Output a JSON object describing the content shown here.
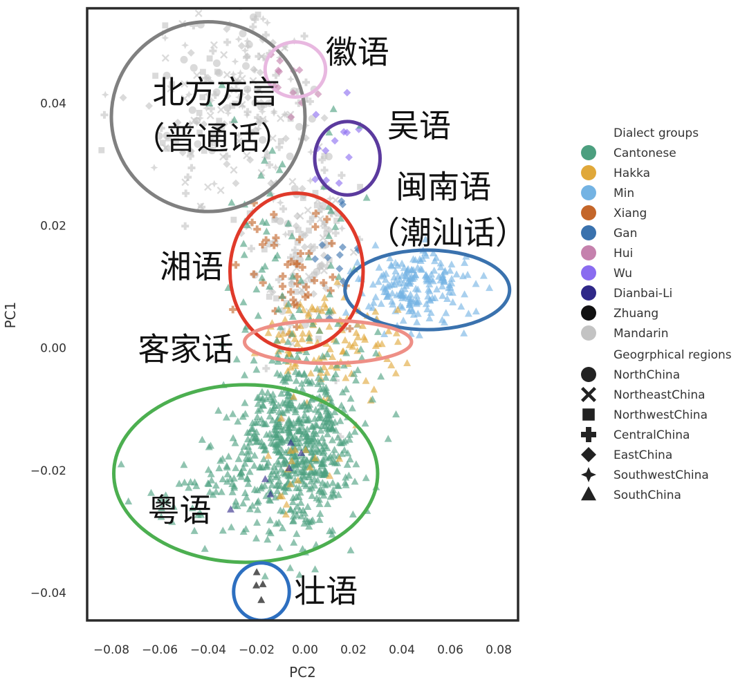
{
  "chart_data": {
    "type": "scatter",
    "xlabel": "PC2",
    "ylabel": "PC1",
    "xlim": [
      -0.09,
      0.088
    ],
    "ylim": [
      -0.0445,
      0.0555
    ],
    "xticks": [
      {
        "value": -0.08,
        "label": "−0.08"
      },
      {
        "value": -0.06,
        "label": "−0.06"
      },
      {
        "value": -0.04,
        "label": "−0.04"
      },
      {
        "value": -0.02,
        "label": "−0.02"
      },
      {
        "value": 0.0,
        "label": "0.00"
      },
      {
        "value": 0.02,
        "label": "0.02"
      },
      {
        "value": 0.04,
        "label": "0.04"
      },
      {
        "value": 0.06,
        "label": "0.06"
      },
      {
        "value": 0.08,
        "label": "0.08"
      }
    ],
    "yticks": [
      {
        "value": 0.04,
        "label": "0.04"
      },
      {
        "value": 0.02,
        "label": "0.02"
      },
      {
        "value": 0.0,
        "label": "0.00"
      },
      {
        "value": -0.02,
        "label": "−0.02"
      },
      {
        "value": -0.04,
        "label": "−0.04"
      }
    ],
    "grid": false,
    "legend_position": "right, outside",
    "dialect_groups_title": "Dialect groups",
    "dialect_groups": [
      {
        "name": "Cantonese",
        "color": "#4c9f7f"
      },
      {
        "name": "Hakka",
        "color": "#e0a83a"
      },
      {
        "name": "Min",
        "color": "#74b3e3"
      },
      {
        "name": "Xiang",
        "color": "#c4662a"
      },
      {
        "name": "Gan",
        "color": "#3a72ae"
      },
      {
        "name": "Hui",
        "color": "#c581ad"
      },
      {
        "name": "Wu",
        "color": "#8a6cf0"
      },
      {
        "name": "Dianbai-Li",
        "color": "#2f2888"
      },
      {
        "name": "Zhuang",
        "color": "#111111"
      },
      {
        "name": "Mandarin",
        "color": "#c3c3c3"
      }
    ],
    "regions_title": "Geogrphical regions",
    "regions": [
      {
        "name": "NorthChina",
        "marker": "circle"
      },
      {
        "name": "NortheastChina",
        "marker": "x"
      },
      {
        "name": "NorthwestChina",
        "marker": "square"
      },
      {
        "name": "CentralChina",
        "marker": "plus"
      },
      {
        "name": "EastChina",
        "marker": "diamond"
      },
      {
        "name": "SouthwestChina",
        "marker": "star4"
      },
      {
        "name": "SouthChina",
        "marker": "triangle"
      }
    ],
    "clusters": [
      {
        "group": "Mandarin",
        "marker": "mixed",
        "cx": -0.03,
        "cy": 0.04,
        "sx": 0.018,
        "sy": 0.008,
        "n": 210
      },
      {
        "group": "Mandarin",
        "marker": "mixed",
        "cx": 0.0,
        "cy": 0.018,
        "sx": 0.012,
        "sy": 0.009,
        "n": 140
      },
      {
        "group": "Hui",
        "marker": "diamond",
        "cx": -0.008,
        "cy": 0.044,
        "sx": 0.006,
        "sy": 0.003,
        "n": 12
      },
      {
        "group": "Wu",
        "marker": "diamond",
        "cx": 0.014,
        "cy": 0.033,
        "sx": 0.007,
        "sy": 0.004,
        "n": 12
      },
      {
        "group": "Xiang",
        "marker": "plus",
        "cx": -0.005,
        "cy": 0.012,
        "sx": 0.01,
        "sy": 0.006,
        "n": 45
      },
      {
        "group": "Gan",
        "marker": "diamond",
        "cx": 0.01,
        "cy": 0.014,
        "sx": 0.006,
        "sy": 0.004,
        "n": 12
      },
      {
        "group": "Min",
        "marker": "triangle",
        "cx": 0.045,
        "cy": 0.01,
        "sx": 0.012,
        "sy": 0.003,
        "n": 190
      },
      {
        "group": "Hakka",
        "marker": "triangle",
        "cx": 0.012,
        "cy": 0.001,
        "sx": 0.015,
        "sy": 0.004,
        "n": 110
      },
      {
        "group": "Cantonese",
        "marker": "triangle",
        "cx": -0.002,
        "cy": -0.016,
        "sx": 0.012,
        "sy": 0.007,
        "n": 560
      },
      {
        "group": "Cantonese",
        "marker": "triangle",
        "cx": -0.03,
        "cy": -0.022,
        "sx": 0.018,
        "sy": 0.004,
        "n": 90
      },
      {
        "group": "Cantonese",
        "marker": "triangle",
        "cx": -0.01,
        "cy": 0.01,
        "sx": 0.018,
        "sy": 0.016,
        "n": 90
      },
      {
        "group": "Hakka",
        "marker": "triangle",
        "cx": 0.0,
        "cy": -0.018,
        "sx": 0.01,
        "sy": 0.006,
        "n": 20
      },
      {
        "group": "Dianbai-Li",
        "marker": "triangle",
        "cx": -0.01,
        "cy": -0.024,
        "sx": 0.008,
        "sy": 0.005,
        "n": 6
      },
      {
        "group": "Zhuang",
        "marker": "triangle",
        "cx": -0.019,
        "cy": -0.0385,
        "sx": 0.002,
        "sy": 0.001,
        "n": 4
      }
    ],
    "annotations": [
      {
        "label": "北方方言",
        "ellipse_color": "#808080",
        "cx": -0.04,
        "cy": 0.0378,
        "rx": 0.04,
        "ry": 0.0155,
        "label_x": -0.063,
        "label_y": 0.04
      },
      {
        "label": "（普通话）",
        "ellipse_color": null,
        "label_x": -0.071,
        "label_y": 0.0325
      },
      {
        "label": "徽语",
        "ellipse_color": "#e8b8e0",
        "cx": -0.004,
        "cy": 0.0455,
        "rx": 0.0125,
        "ry": 0.0045,
        "label_x": 0.0085,
        "label_y": 0.0465
      },
      {
        "label": "吴语",
        "ellipse_color": "#5b3a9e",
        "cx": 0.0175,
        "cy": 0.031,
        "rx": 0.0135,
        "ry": 0.006,
        "label_x": 0.034,
        "label_y": 0.0345
      },
      {
        "label": "闽南语",
        "ellipse_color": "#3a72ae",
        "cx": 0.0505,
        "cy": 0.0095,
        "rx": 0.034,
        "ry": 0.0065,
        "label_x": 0.0375,
        "label_y": 0.0245
      },
      {
        "label": "（潮汕话）",
        "ellipse_color": null,
        "label_x": 0.026,
        "label_y": 0.017
      },
      {
        "label": "湘语",
        "ellipse_color": "#e03a2a",
        "cx": -0.0035,
        "cy": 0.0125,
        "rx": 0.0275,
        "ry": 0.0128,
        "label_x": -0.06,
        "label_y": 0.0115
      },
      {
        "label": "客家话",
        "ellipse_color": "#ee8f86",
        "cx": 0.0095,
        "cy": 0.001,
        "rx": 0.0345,
        "ry": 0.0035,
        "label_x": -0.069,
        "label_y": -0.002
      },
      {
        "label": "粤语",
        "ellipse_color": "#4caf50",
        "cx": -0.0245,
        "cy": -0.0205,
        "rx": 0.0545,
        "ry": 0.0145,
        "label_x": -0.065,
        "label_y": -0.0283
      },
      {
        "label": "壮语",
        "ellipse_color": "#2d6fc0",
        "cx": -0.018,
        "cy": -0.0398,
        "rx": 0.0115,
        "ry": 0.0047,
        "label_x": -0.0045,
        "label_y": -0.0415
      }
    ]
  }
}
